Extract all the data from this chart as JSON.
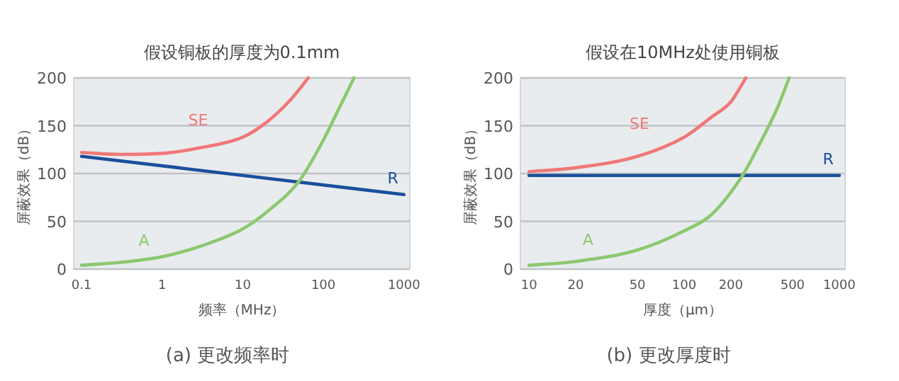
{
  "chart_data": [
    {
      "type": "line",
      "title": "假设铜板的厚度为0.1mm",
      "xlabel": "频率（MHz）",
      "ylabel": "屏蔽效果（dB）",
      "annotations": [
        "(a)  更改频率时"
      ],
      "log": "x",
      "grid": "y",
      "xlim": [
        0.08,
        1180
      ],
      "ylim": [
        0,
        200
      ],
      "xticks": [
        {
          "value": 0.1,
          "label": "0.1"
        },
        1,
        10,
        100,
        1000
      ],
      "yticks": [
        0,
        50,
        100,
        150,
        200
      ],
      "series": [
        {
          "name": "SE",
          "color": "#f07878",
          "x": [
            0.1,
            0.3,
            1,
            3,
            10,
            20,
            40,
            65
          ],
          "values": [
            122,
            120,
            121,
            127,
            138,
            154,
            178,
            200
          ]
        },
        {
          "name": "R",
          "color": "#1a4f9c",
          "x": [
            0.1,
            10,
            1000
          ],
          "values": [
            118,
            98,
            78
          ]
        },
        {
          "name": "A",
          "color": "#8cc870",
          "x": [
            0.1,
            0.3,
            1,
            3,
            10,
            20,
            50,
            100,
            150,
            240
          ],
          "values": [
            4,
            7,
            13,
            24,
            42,
            60,
            92,
            135,
            165,
            200
          ]
        }
      ]
    },
    {
      "type": "line",
      "title": "假设在10MHz处使用铜板",
      "xlabel": "厚度（μm）",
      "ylabel": "屏蔽效果（dB）",
      "annotations": [
        "(b)  更改厚度时"
      ],
      "log": "x",
      "grid": "y",
      "xlim": [
        8.8,
        1090
      ],
      "ylim": [
        0,
        200
      ],
      "xticks": [
        10,
        20,
        50,
        100,
        200,
        500,
        1000
      ],
      "yticks": [
        0,
        50,
        100,
        150,
        200
      ],
      "series": [
        {
          "name": "SE",
          "color": "#f07878",
          "x": [
            10,
            20,
            50,
            100,
            150,
            200,
            250
          ],
          "values": [
            102,
            106,
            118,
            138,
            159,
            175,
            200
          ]
        },
        {
          "name": "R",
          "color": "#1a4f9c",
          "x": [
            10,
            1000
          ],
          "values": [
            98,
            98
          ]
        },
        {
          "name": "A",
          "color": "#8cc870",
          "x": [
            10,
            20,
            50,
            100,
            150,
            240,
            300,
            400,
            475
          ],
          "values": [
            4,
            8,
            20,
            40,
            57,
            99,
            128,
            169,
            200
          ]
        }
      ]
    }
  ]
}
